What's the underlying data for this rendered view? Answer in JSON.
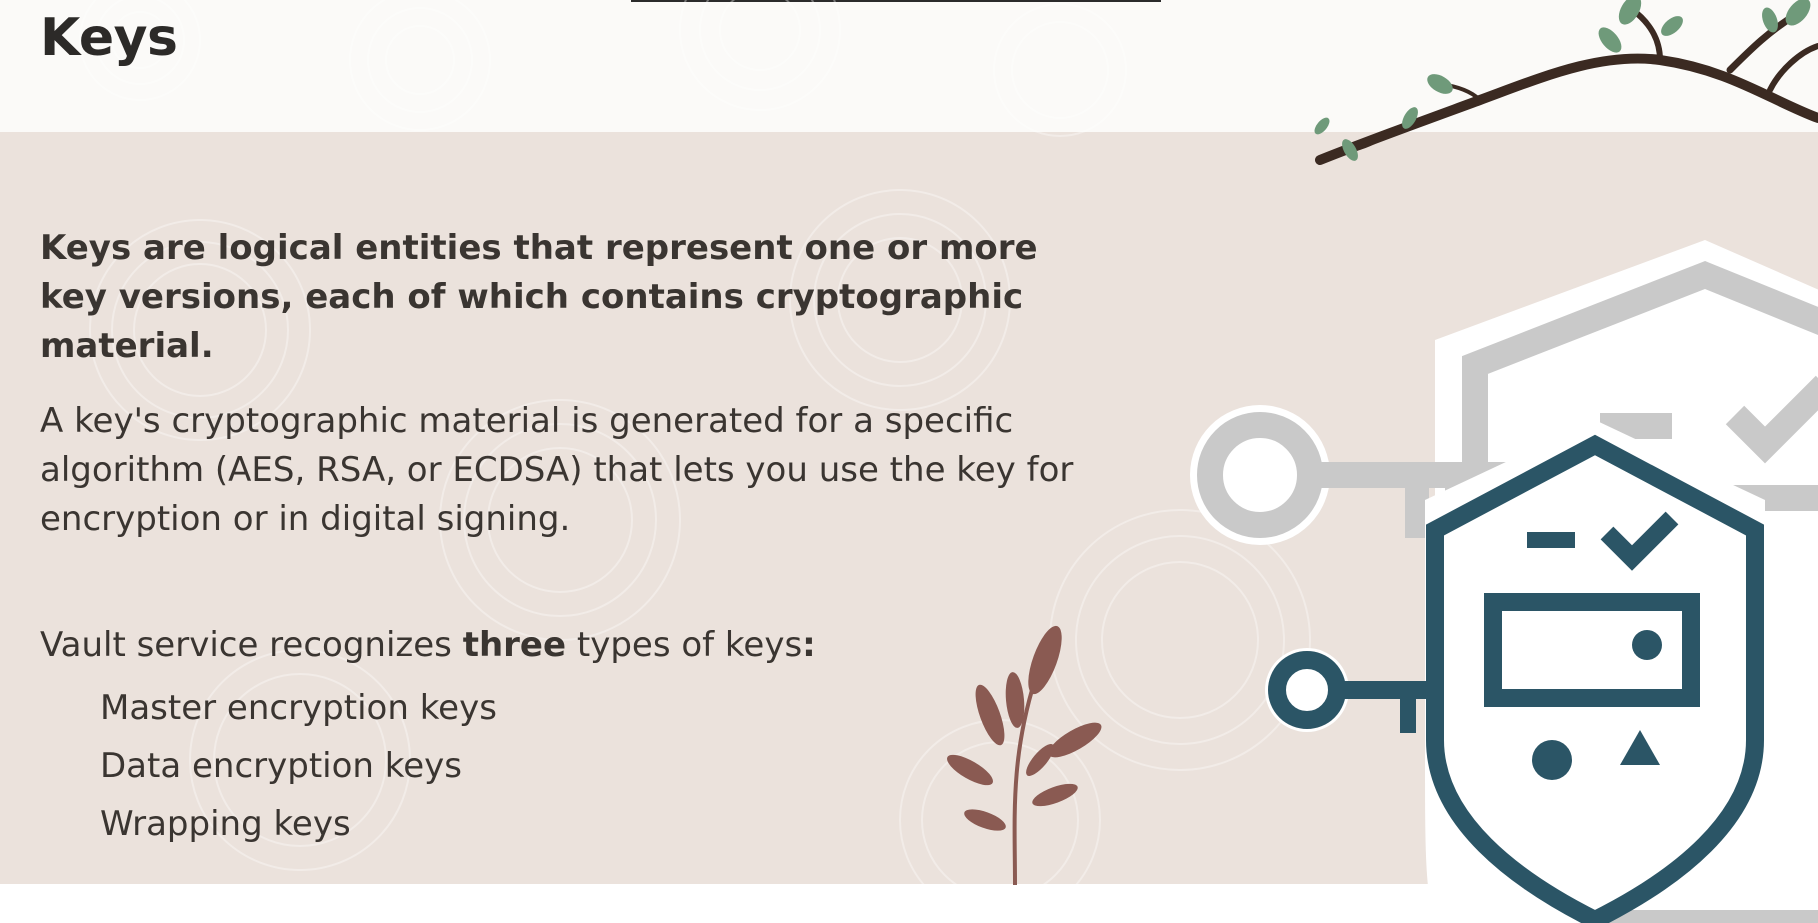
{
  "slide": {
    "title": "Keys",
    "intro": "Keys are logical entities that represent one or more key versions, each of which contains cryptographic material.",
    "detail": "A key's cryptographic material is generated for a specific algorithm (AES, RSA, or ECDSA) that lets you use the key for encryption or in digital signing.",
    "types_prefix": "Vault service recognizes ",
    "types_emphasis": "three",
    "types_suffix": " types of keys",
    "types_colon": ":",
    "key_types": [
      "Master encryption keys",
      "Data encryption keys",
      "Wrapping keys"
    ]
  },
  "colors": {
    "content_background": "#ebe2dc",
    "text": "#3a3531",
    "shield_accent": "#2b5566",
    "shield_muted": "#c9c9c9",
    "branch": "#3b2a22",
    "leaf_green": "#6f9a7a",
    "plant_leaf": "#8a5a52"
  },
  "icons": {
    "branch": "tree-branch-icon",
    "plant": "plant-sprig-icon",
    "shield": "shield-key-security-icon"
  }
}
